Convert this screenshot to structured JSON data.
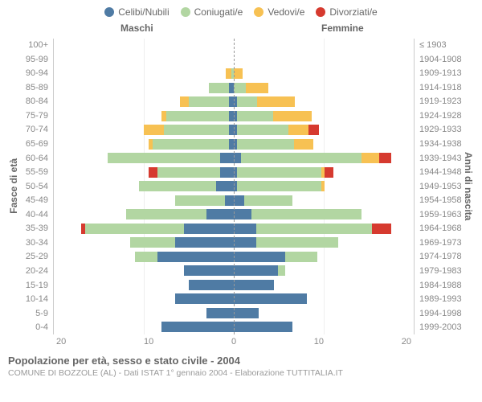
{
  "legend": {
    "items": [
      {
        "label": "Celibi/Nubili",
        "color": "#4f7ba4"
      },
      {
        "label": "Coniugati/e",
        "color": "#b2d6a2"
      },
      {
        "label": "Vedovi/e",
        "color": "#f7c153"
      },
      {
        "label": "Divorziati/e",
        "color": "#d63a2f"
      }
    ]
  },
  "headers": {
    "left": "Maschi",
    "right": "Femmine"
  },
  "ylabels": {
    "left": "Fasce di età",
    "right": "Anni di nascita"
  },
  "axis": {
    "max": 20,
    "ticks": [
      "20",
      "10",
      "0",
      "10",
      "20"
    ]
  },
  "colors": {
    "single": "#4f7ba4",
    "married": "#b2d6a2",
    "widowed": "#f7c153",
    "divorced": "#d63a2f",
    "grid": "#eeeeee",
    "centerline": "#999999",
    "text": "#666666",
    "subtext": "#999999",
    "background": "#ffffff"
  },
  "fontsize": {
    "legend": 12,
    "header": 12,
    "ticks": 11,
    "title": 13,
    "sub": 10.5
  },
  "rows": [
    {
      "age": "100+",
      "year": "≤ 1903",
      "m": [
        0,
        0,
        0,
        0
      ],
      "f": [
        0,
        0,
        0,
        0
      ]
    },
    {
      "age": "95-99",
      "year": "1904-1908",
      "m": [
        0,
        0,
        0,
        0
      ],
      "f": [
        0,
        0,
        0,
        0
      ]
    },
    {
      "age": "90-94",
      "year": "1909-1913",
      "m": [
        0,
        0.3,
        0.6,
        0
      ],
      "f": [
        0,
        0,
        1.0,
        0
      ]
    },
    {
      "age": "85-89",
      "year": "1914-1918",
      "m": [
        0.5,
        2.3,
        0,
        0
      ],
      "f": [
        0,
        1.3,
        2.5,
        0
      ]
    },
    {
      "age": "80-84",
      "year": "1919-1923",
      "m": [
        0.5,
        4.5,
        1.0,
        0
      ],
      "f": [
        0.4,
        2.2,
        4.2,
        0
      ]
    },
    {
      "age": "75-79",
      "year": "1924-1928",
      "m": [
        0.5,
        7.0,
        0.5,
        0
      ],
      "f": [
        0.4,
        4.0,
        4.3,
        0
      ]
    },
    {
      "age": "70-74",
      "year": "1929-1933",
      "m": [
        0.5,
        7.3,
        2.2,
        0
      ],
      "f": [
        0.4,
        5.7,
        2.2,
        1.2
      ]
    },
    {
      "age": "65-69",
      "year": "1934-1938",
      "m": [
        0.5,
        8.5,
        0.5,
        0
      ],
      "f": [
        0.4,
        6.3,
        2.1,
        0
      ]
    },
    {
      "age": "60-64",
      "year": "1939-1943",
      "m": [
        1.5,
        12.5,
        0,
        0
      ],
      "f": [
        0.8,
        13.4,
        2.0,
        1.3
      ]
    },
    {
      "age": "55-59",
      "year": "1944-1948",
      "m": [
        1.5,
        7.0,
        0,
        1.0
      ],
      "f": [
        0.4,
        9.3,
        0.4,
        1.0
      ]
    },
    {
      "age": "50-54",
      "year": "1949-1953",
      "m": [
        2.0,
        8.5,
        0,
        0
      ],
      "f": [
        0.4,
        9.3,
        0.4,
        0
      ]
    },
    {
      "age": "45-49",
      "year": "1954-1958",
      "m": [
        1.0,
        5.5,
        0,
        0
      ],
      "f": [
        1.2,
        5.3,
        0,
        0
      ]
    },
    {
      "age": "40-44",
      "year": "1959-1963",
      "m": [
        3.0,
        9.0,
        0,
        0
      ],
      "f": [
        2.0,
        12.2,
        0,
        0
      ]
    },
    {
      "age": "35-39",
      "year": "1964-1968",
      "m": [
        5.5,
        11.0,
        0,
        0.5
      ],
      "f": [
        2.5,
        12.9,
        0,
        2.1
      ]
    },
    {
      "age": "30-34",
      "year": "1969-1973",
      "m": [
        6.5,
        5.0,
        0,
        0
      ],
      "f": [
        2.5,
        9.1,
        0,
        0
      ]
    },
    {
      "age": "25-29",
      "year": "1974-1978",
      "m": [
        8.5,
        2.5,
        0,
        0
      ],
      "f": [
        5.7,
        3.6,
        0,
        0
      ]
    },
    {
      "age": "20-24",
      "year": "1979-1983",
      "m": [
        5.5,
        0,
        0,
        0
      ],
      "f": [
        4.9,
        0.8,
        0,
        0
      ]
    },
    {
      "age": "15-19",
      "year": "1984-1988",
      "m": [
        5.0,
        0,
        0,
        0
      ],
      "f": [
        4.5,
        0,
        0,
        0
      ]
    },
    {
      "age": "10-14",
      "year": "1989-1993",
      "m": [
        6.5,
        0,
        0,
        0
      ],
      "f": [
        8.1,
        0,
        0,
        0
      ]
    },
    {
      "age": "5-9",
      "year": "1994-1998",
      "m": [
        3.0,
        0,
        0,
        0
      ],
      "f": [
        2.8,
        0,
        0,
        0
      ]
    },
    {
      "age": "0-4",
      "year": "1999-2003",
      "m": [
        8.0,
        0,
        0,
        0
      ],
      "f": [
        6.5,
        0,
        0,
        0
      ]
    }
  ],
  "footer": {
    "title": "Popolazione per età, sesso e stato civile - 2004",
    "sub": "COMUNE DI BOZZOLE (AL) - Dati ISTAT 1° gennaio 2004 - Elaborazione TUTTITALIA.IT"
  }
}
